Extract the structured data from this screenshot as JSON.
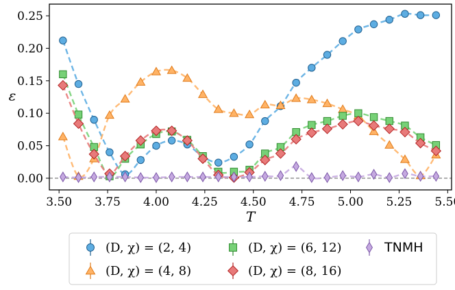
{
  "chart_data": {
    "type": "line",
    "title": "",
    "xlabel": "T",
    "ylabel": "ε",
    "xlim": [
      3.45,
      5.52
    ],
    "ylim": [
      -0.018,
      0.268
    ],
    "xticks": [
      3.5,
      3.75,
      4.0,
      4.25,
      4.5,
      4.75,
      5.0,
      5.25,
      5.5
    ],
    "xtick_labels": [
      "3.50",
      "3.75",
      "4.00",
      "4.25",
      "4.50",
      "4.75",
      "5.00",
      "5.25",
      "5.50"
    ],
    "yticks": [
      0.0,
      0.05,
      0.1,
      0.15,
      0.2,
      0.25
    ],
    "ytick_labels": [
      "0.00",
      "0.05",
      "0.10",
      "0.15",
      "0.20",
      "0.25"
    ],
    "reference_line": 0.0,
    "x": [
      3.52,
      3.6,
      3.68,
      3.76,
      3.84,
      3.92,
      4.0,
      4.08,
      4.16,
      4.24,
      4.32,
      4.4,
      4.48,
      4.56,
      4.64,
      4.72,
      4.8,
      4.88,
      4.96,
      5.04,
      5.12,
      5.2,
      5.28,
      5.36,
      5.44
    ],
    "series": [
      {
        "name": "(D,χ)=(2,4)",
        "legend_label": "(D, χ) = (2, 4)",
        "color": "#5dade2",
        "edge": "#1f5f8f",
        "marker": "circle",
        "values": [
          0.212,
          0.145,
          0.09,
          0.04,
          0.006,
          0.028,
          0.05,
          0.058,
          0.052,
          0.033,
          0.024,
          0.033,
          0.052,
          0.088,
          0.111,
          0.147,
          0.17,
          0.19,
          0.211,
          0.229,
          0.237,
          0.244,
          0.253,
          0.251,
          0.251
        ]
      },
      {
        "name": "(D,χ)=(4,8)",
        "legend_label": "(D, χ) = (4, 8)",
        "color": "#ffb366",
        "edge": "#e07b1a",
        "marker": "triangle",
        "values": [
          0.064,
          0.003,
          0.03,
          0.097,
          0.122,
          0.148,
          0.164,
          0.166,
          0.154,
          0.129,
          0.106,
          0.1,
          0.098,
          0.113,
          0.112,
          0.123,
          0.121,
          0.115,
          0.106,
          0.096,
          0.072,
          0.051,
          0.029,
          0.004,
          0.036
        ]
      },
      {
        "name": "(D,χ)=(6,12)",
        "legend_label": "(D, χ) = (6, 12)",
        "color": "#77d177",
        "edge": "#2e8b2e",
        "marker": "square",
        "values": [
          0.16,
          0.098,
          0.048,
          0.003,
          0.03,
          0.052,
          0.068,
          0.072,
          0.059,
          0.034,
          0.01,
          0.01,
          0.013,
          0.038,
          0.048,
          0.071,
          0.082,
          0.088,
          0.096,
          0.1,
          0.094,
          0.088,
          0.081,
          0.063,
          0.051
        ]
      },
      {
        "name": "(D,χ)=(8,16)",
        "legend_label": "(D, χ) = (8, 16)",
        "color": "#e87a7a",
        "edge": "#b22222",
        "marker": "diamond",
        "values": [
          0.143,
          0.084,
          0.037,
          0.007,
          0.034,
          0.058,
          0.073,
          0.073,
          0.058,
          0.03,
          0.005,
          0.001,
          0.009,
          0.028,
          0.038,
          0.06,
          0.07,
          0.076,
          0.083,
          0.088,
          0.081,
          0.076,
          0.071,
          0.054,
          0.042
        ]
      },
      {
        "name": "TNMH",
        "legend_label": "TNMH",
        "color": "#c5a9e0",
        "edge": "#7b57a8",
        "marker": "thin-diamond",
        "values": [
          0.002,
          0.001,
          0.002,
          0.002,
          0.002,
          0.001,
          0.001,
          0.002,
          0.002,
          0.002,
          0.002,
          0.002,
          0.002,
          0.003,
          0.004,
          0.018,
          0.001,
          0.001,
          0.004,
          0.002,
          0.006,
          0.001,
          0.007,
          0.003,
          0.003
        ]
      }
    ],
    "legend_position": "bottom"
  }
}
